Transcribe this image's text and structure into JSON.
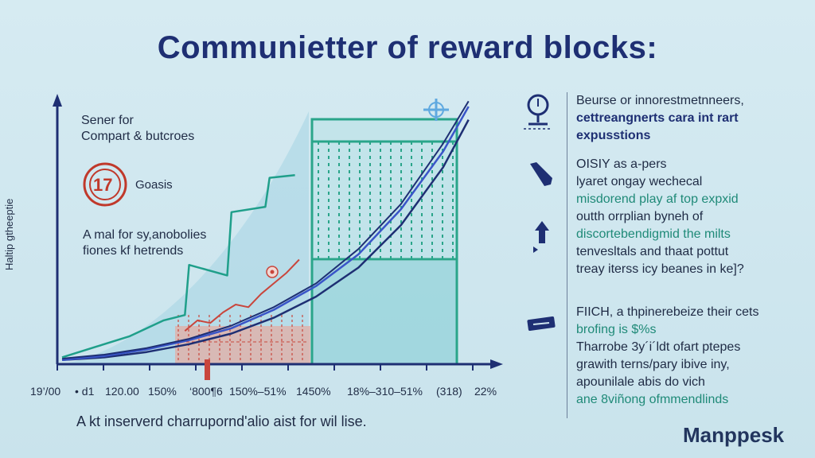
{
  "title": "Communietter of reward blocks:",
  "left_annotations": {
    "line1": "Sener for",
    "line2": "Compart & butcroes",
    "badge_label": "Goasis",
    "line3": "A mal for sy,anobolies",
    "line4": "fiones kf hetrends"
  },
  "y_axis_label": "Haltip gtheeptie",
  "x_tick_labels": [
    "19’/00",
    "• d1",
    "120.00",
    "150%",
    "‘800¶6",
    "150%–51%",
    "1450%",
    "18%–310–51%",
    "(318)",
    "22%"
  ],
  "caption": "A kt inserverd charrupornd'alio aist for wil lise.",
  "brand": "Manppesk",
  "right_panel": {
    "block1": [
      "Beurse or innorestmetnneers,",
      "cettreangnerts cara int rart",
      "expusstions"
    ],
    "block2": [
      "OISIY as a-pers",
      "lyaret ongay wechecal",
      "misdorend play af top expxid",
      "outth orrplian byneh of",
      "discortebendigmid the milts",
      "tenvesltals and thaat pottut",
      "treay iterss icy beanes in ke]?"
    ],
    "block3": [
      "FIICH, a thpinerebeize their cets",
      "brofing is $%s",
      "Tharrobe 3y´i´ldt ofart ptepes",
      "grawith terns/pary ibive iny,",
      "apounilale abis do vich",
      "ane 8viñong ofmmendlinds"
    ]
  },
  "colors": {
    "title": "#1e2f73",
    "curve_navy": "#1e2f73",
    "curve_blue": "#3a55c8",
    "curve_teal": "#1f9f8a",
    "grid_green": "#2aa58a",
    "red_step": "#c9463c",
    "background": "#d0e7ef"
  },
  "icons": [
    "magnifier-icon",
    "phone-icon",
    "upload-arrow-icon",
    "card-icon",
    "plus-target-icon",
    "sun-badge-icon"
  ],
  "chart_data": {
    "type": "line",
    "title": "Communietter of reward blocks:",
    "ylabel": "Haltip gtheeptie",
    "x_tick_labels": [
      "19’/00",
      "• d1",
      "120.00",
      "150%",
      "‘800¶6",
      "150%–51%",
      "1450%",
      "18%–310–51%",
      "(318)",
      "22%"
    ],
    "xlim": [
      0,
      10
    ],
    "ylim": [
      0,
      10
    ],
    "series": [
      {
        "x": [
          0,
          1,
          2,
          3,
          4,
          5,
          6,
          7,
          8,
          9,
          9.6
        ],
        "y": [
          0.1,
          0.2,
          0.4,
          0.7,
          1.1,
          1.7,
          2.5,
          3.6,
          5.2,
          7.4,
          9.2
        ]
      },
      {
        "x": [
          0,
          1,
          2,
          3,
          4,
          5,
          6,
          7,
          8,
          9,
          9.6
        ],
        "y": [
          0.1,
          0.25,
          0.5,
          0.85,
          1.3,
          2.0,
          2.9,
          4.1,
          5.8,
          8.0,
          9.7
        ]
      },
      {
        "x": [
          0,
          1,
          2,
          3,
          4,
          5,
          6,
          7,
          8,
          9,
          9.6
        ],
        "y": [
          0.15,
          0.3,
          0.55,
          0.9,
          1.4,
          2.1,
          3.0,
          4.3,
          6.0,
          8.3,
          9.9
        ]
      },
      {
        "x": [
          0,
          0.8,
          1.6,
          2.4,
          2.9,
          3.0,
          3.9,
          4.0,
          4.8,
          4.9,
          5.5
        ],
        "y": [
          0.2,
          0.6,
          1.0,
          1.6,
          1.8,
          3.7,
          3.3,
          5.7,
          5.9,
          7.0,
          7.1
        ]
      },
      {
        "x": [
          2.9,
          3.2,
          3.5,
          3.8,
          4.1,
          4.4,
          4.7,
          5.0,
          5.3,
          5.6
        ],
        "y": [
          1.2,
          1.6,
          1.5,
          1.9,
          2.2,
          2.1,
          2.6,
          3.0,
          3.4,
          3.9
        ]
      }
    ],
    "grid": false
  }
}
